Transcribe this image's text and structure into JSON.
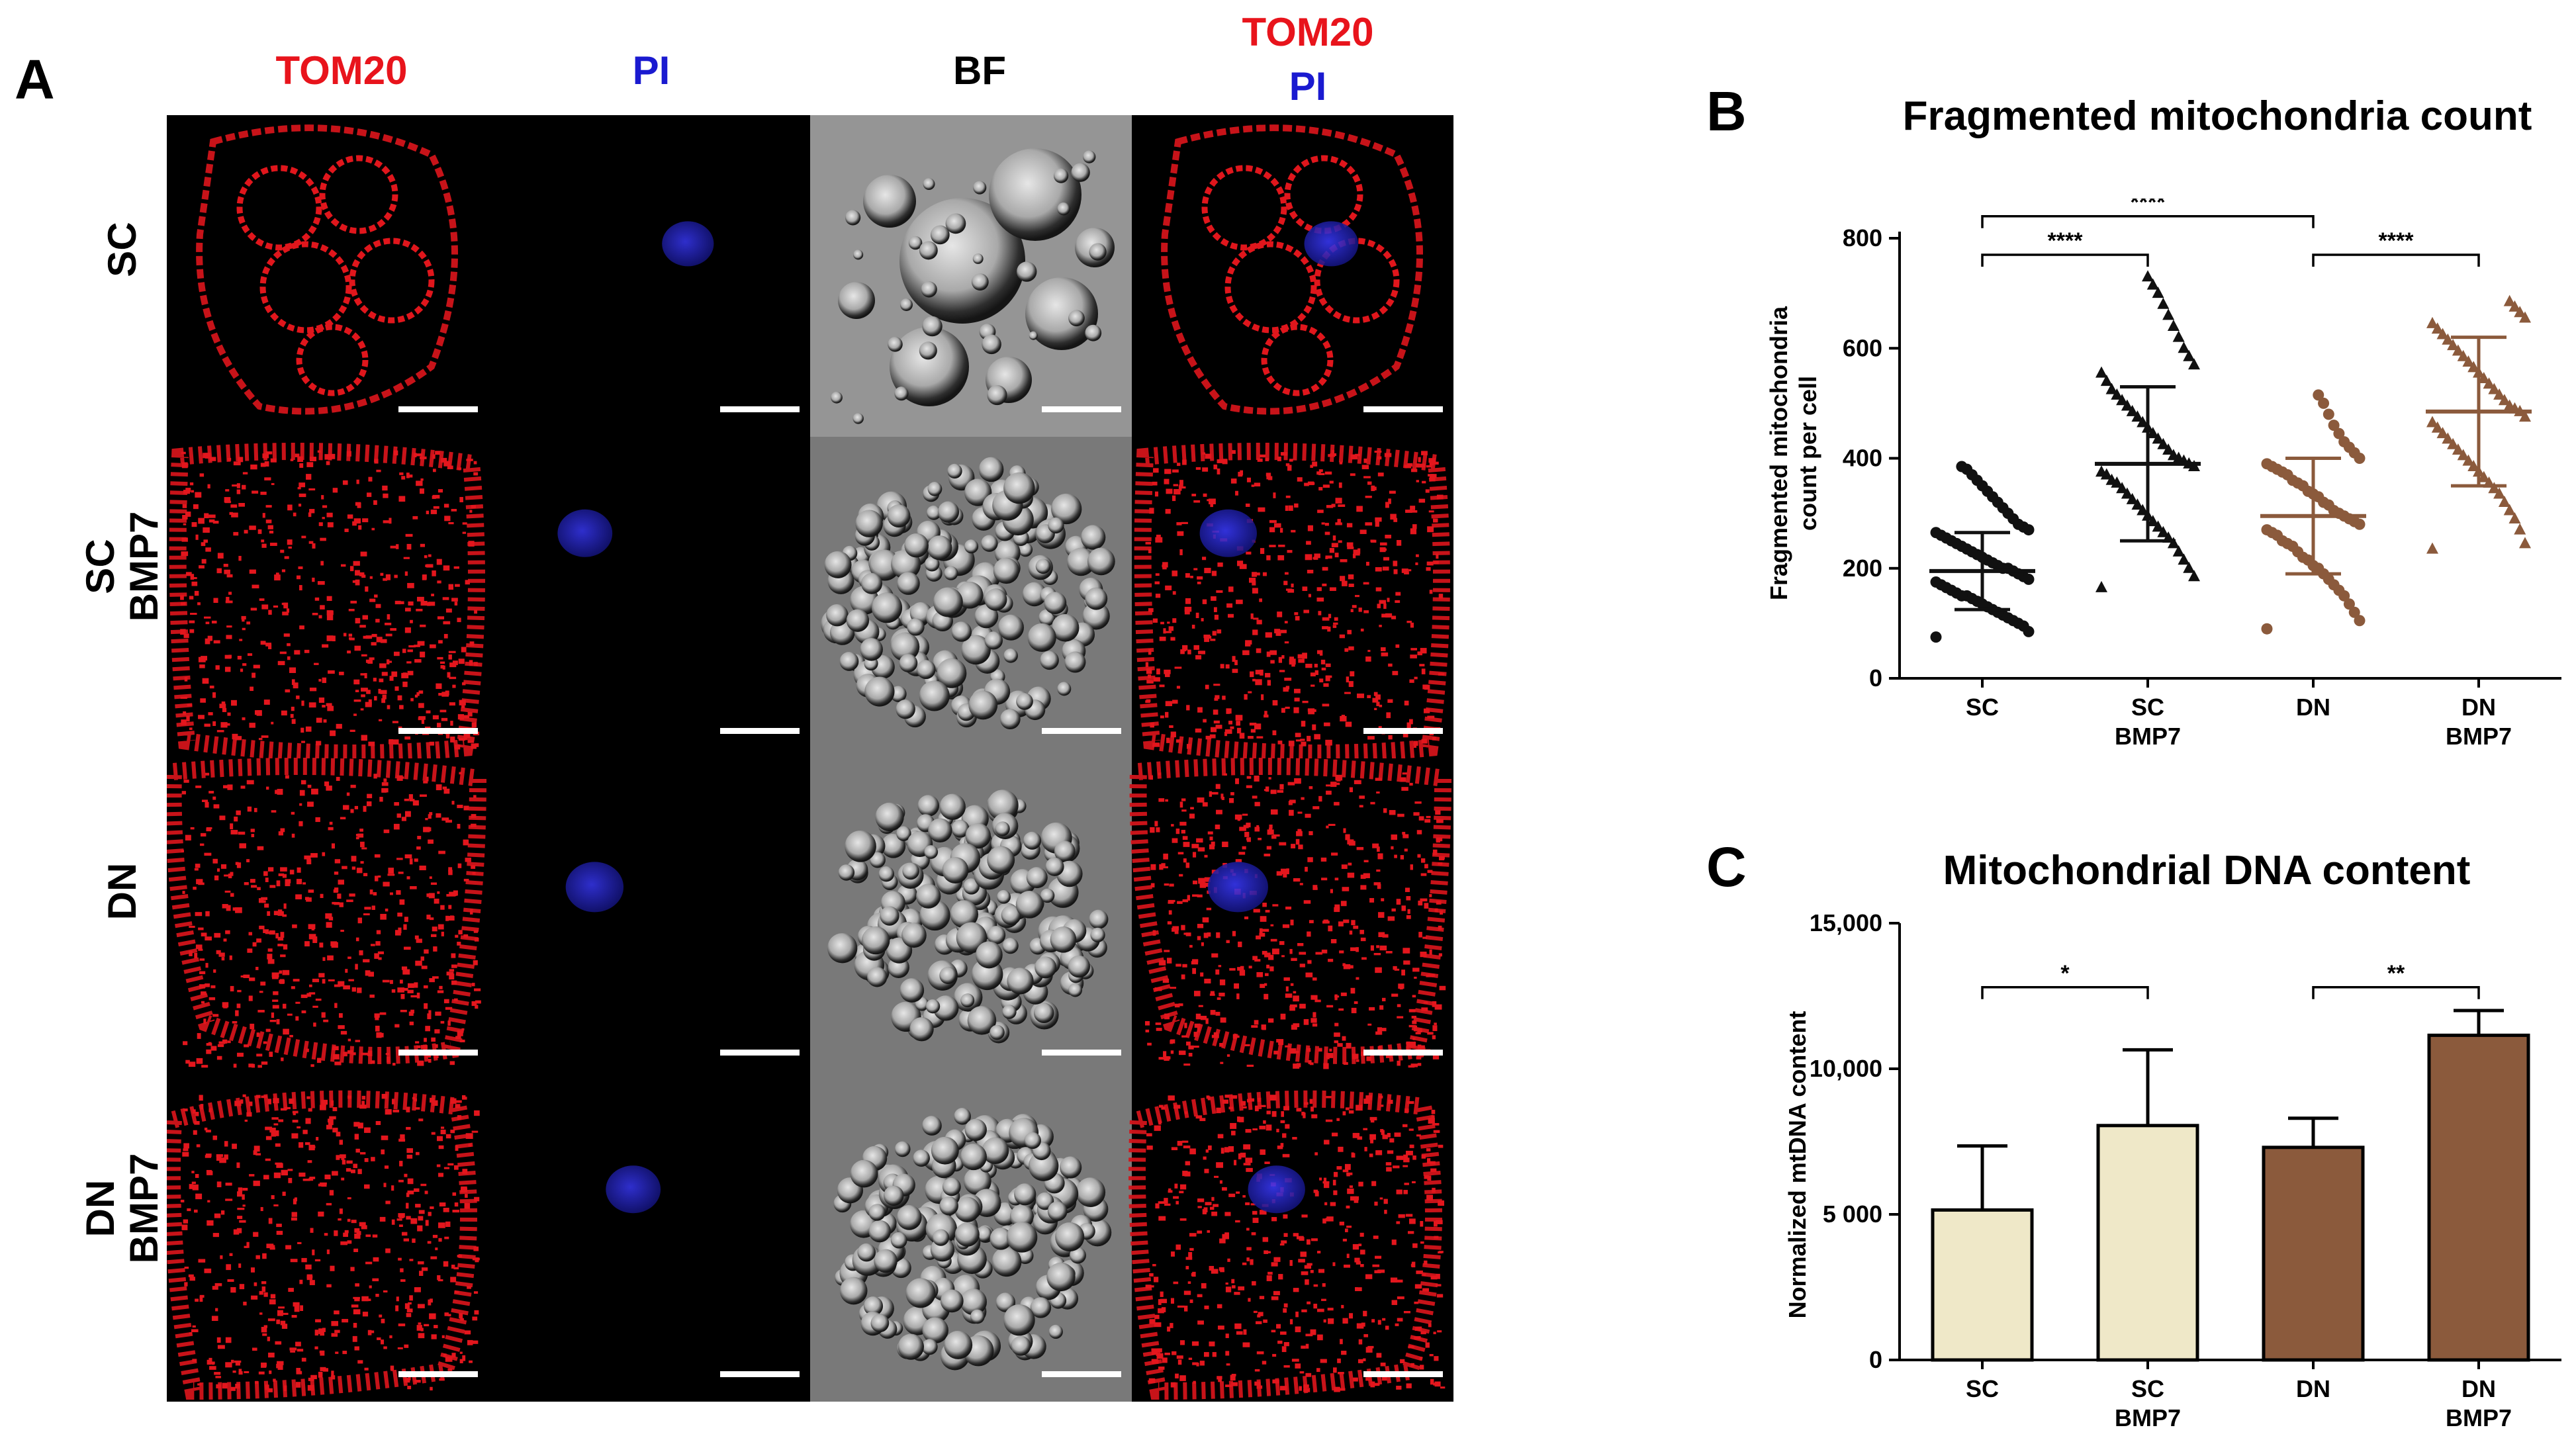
{
  "figure": {
    "panels": {
      "a": "A",
      "b": "B",
      "c": "C"
    },
    "columns": [
      {
        "key": "tom20",
        "label": "TOM20",
        "color": "#e8141c"
      },
      {
        "key": "pi",
        "label": "PI",
        "color": "#1a1ad0"
      },
      {
        "key": "bf",
        "label": "BF",
        "color": "#000000"
      },
      {
        "key": "merge",
        "label": "TOM20",
        "label2": "PI",
        "color": "#e8141c",
        "color2": "#1a1ad0"
      }
    ],
    "rows": [
      {
        "key": "sc",
        "line1": "SC",
        "line2": ""
      },
      {
        "key": "scb",
        "line1": "SC",
        "line2": "BMP7"
      },
      {
        "key": "dn",
        "line1": "DN",
        "line2": ""
      },
      {
        "key": "dnb",
        "line1": "DN",
        "line2": "BMP7"
      }
    ]
  },
  "chart_data": [
    {
      "type": "scatter",
      "panel": "B",
      "title": "Fragmented mitochondria count",
      "ylabel_line1": "Fragmented mitochondria",
      "ylabel_line2": "count per cell",
      "ylim": [
        0,
        800
      ],
      "yticks": [
        "0",
        "200",
        "400",
        "600",
        "800"
      ],
      "categories": [
        {
          "line1": "SC",
          "line2": ""
        },
        {
          "line1": "SC",
          "line2": "BMP7"
        },
        {
          "line1": "DN",
          "line2": ""
        },
        {
          "line1": "DN",
          "line2": "BMP7"
        }
      ],
      "series": [
        {
          "mean": 195,
          "sd_low": 125,
          "sd_high": 265,
          "marker": "circle",
          "color": "#111111",
          "values": [
            75,
            85,
            95,
            100,
            105,
            110,
            115,
            120,
            125,
            130,
            135,
            140,
            145,
            150,
            150,
            155,
            160,
            165,
            170,
            175,
            180,
            185,
            190,
            195,
            200,
            200,
            205,
            210,
            215,
            220,
            225,
            230,
            235,
            240,
            245,
            250,
            255,
            260,
            265,
            270,
            275,
            280,
            290,
            300,
            310,
            320,
            330,
            340,
            350,
            360,
            370,
            380,
            385
          ]
        },
        {
          "mean": 390,
          "sd_low": 250,
          "sd_high": 530,
          "marker": "triangle",
          "color": "#111111",
          "values": [
            165,
            185,
            200,
            215,
            230,
            245,
            255,
            265,
            275,
            285,
            295,
            305,
            315,
            325,
            335,
            345,
            355,
            360,
            370,
            375,
            385,
            390,
            395,
            400,
            405,
            415,
            425,
            435,
            445,
            455,
            465,
            475,
            485,
            495,
            505,
            515,
            525,
            540,
            555,
            570,
            585,
            600,
            620,
            640,
            660,
            680,
            700,
            715,
            730
          ]
        },
        {
          "mean": 295,
          "sd_low": 190,
          "sd_high": 400,
          "marker": "circle",
          "color": "#8b5a3c",
          "values": [
            90,
            105,
            120,
            135,
            150,
            160,
            170,
            180,
            190,
            200,
            205,
            215,
            220,
            230,
            240,
            245,
            250,
            260,
            265,
            270,
            280,
            285,
            290,
            295,
            300,
            305,
            315,
            320,
            330,
            335,
            340,
            350,
            355,
            360,
            370,
            375,
            380,
            385,
            390,
            400,
            410,
            420,
            430,
            445,
            460,
            480,
            500,
            515
          ]
        },
        {
          "mean": 485,
          "sd_low": 350,
          "sd_high": 620,
          "marker": "triangle",
          "color": "#8b5a3c",
          "values": [
            235,
            245,
            270,
            290,
            305,
            320,
            335,
            345,
            355,
            365,
            375,
            385,
            395,
            405,
            415,
            425,
            435,
            445,
            455,
            465,
            475,
            485,
            490,
            495,
            505,
            515,
            525,
            535,
            545,
            555,
            565,
            575,
            585,
            595,
            605,
            615,
            625,
            635,
            645,
            655,
            665,
            675,
            685
          ]
        }
      ],
      "comparisons": [
        {
          "from": 0,
          "to": 1,
          "label": "****",
          "y": 770
        },
        {
          "from": 0,
          "to": 2,
          "label": "****",
          "y": 840
        },
        {
          "from": 2,
          "to": 3,
          "label": "****",
          "y": 770
        }
      ]
    },
    {
      "type": "bar",
      "panel": "C",
      "title": "Mitochondrial DNA content",
      "ylabel": "Normalized mtDNA content",
      "ylim": [
        0,
        15000
      ],
      "yticks": [
        "0",
        "5 000",
        "10,000",
        "15,000"
      ],
      "categories": [
        {
          "line1": "SC",
          "line2": ""
        },
        {
          "line1": "SC",
          "line2": "BMP7"
        },
        {
          "line1": "DN",
          "line2": ""
        },
        {
          "line1": "DN",
          "line2": "BMP7"
        }
      ],
      "values": [
        5150,
        8050,
        7300,
        11150
      ],
      "errors": [
        2200,
        2600,
        1000,
        850
      ],
      "colors": [
        "#efe8c8",
        "#efe8c8",
        "#8b5a3c",
        "#8b5a3c"
      ],
      "comparisons": [
        {
          "from": 0,
          "to": 1,
          "label": "*",
          "y": 12800
        },
        {
          "from": 2,
          "to": 3,
          "label": "**",
          "y": 12800
        }
      ]
    }
  ]
}
